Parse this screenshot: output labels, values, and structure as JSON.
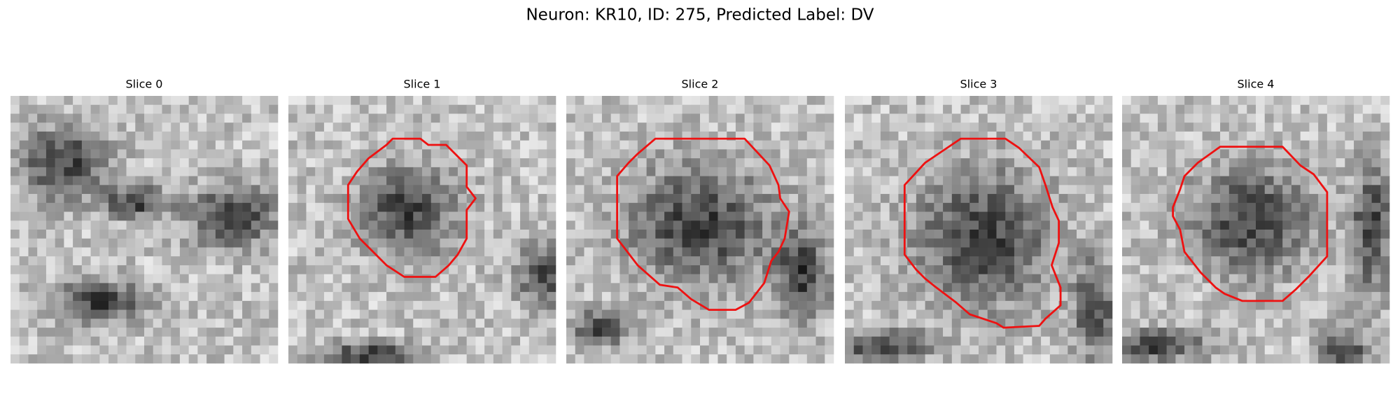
{
  "title": "Neuron: KR10, ID: 275, Predicted Label: DV",
  "panels": [
    {
      "title": "Slice 0"
    },
    {
      "title": "Slice 1"
    },
    {
      "title": "Slice 2"
    },
    {
      "title": "Slice 3"
    },
    {
      "title": "Slice 4"
    }
  ]
}
